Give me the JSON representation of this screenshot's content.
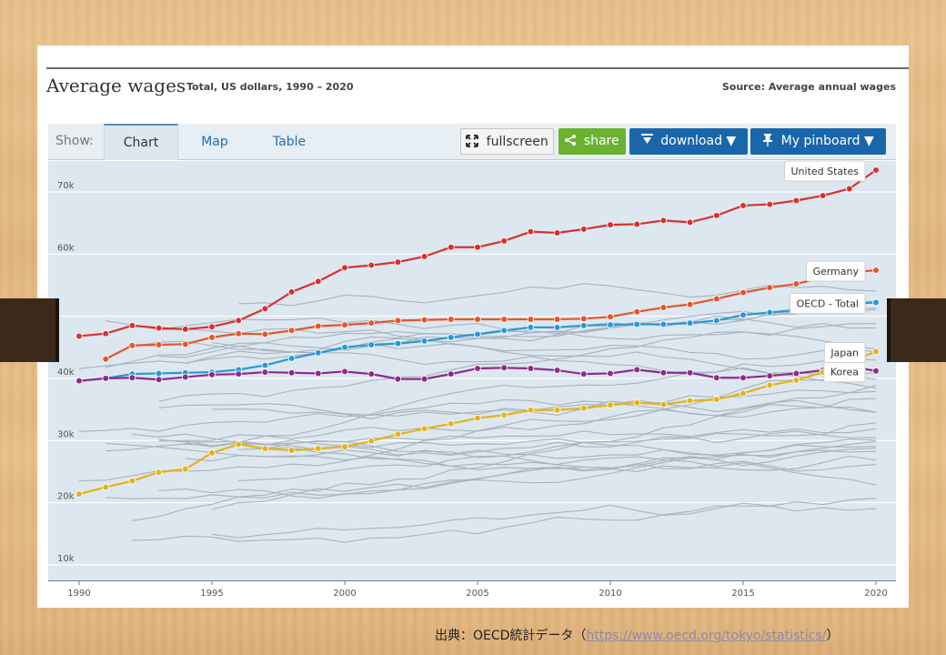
{
  "header": {
    "title": "Average wages",
    "subtitle": "Total, US dollars, 1990 – 2020",
    "source": "Source: Average annual wages"
  },
  "toolbar": {
    "show_label": "Show:",
    "tabs": [
      "Chart",
      "Map",
      "Table"
    ],
    "fullscreen_label": "fullscreen",
    "share_label": "share",
    "download_label": "download ▼",
    "pinboard_label": "My pinboard ▼"
  },
  "footer": {
    "prefix": "出典：OECD統計データ（",
    "link": "https://www.oecd.org/tokyo/statistics/",
    "suffix": "）"
  },
  "chart_data": {
    "type": "line",
    "title": "Average wages",
    "subtitle": "Total, US dollars, 1990 – 2020",
    "x": [
      1990,
      1991,
      1992,
      1993,
      1994,
      1995,
      1996,
      1997,
      1998,
      1999,
      2000,
      2001,
      2002,
      2003,
      2004,
      2005,
      2006,
      2007,
      2008,
      2009,
      2010,
      2011,
      2012,
      2013,
      2014,
      2015,
      2016,
      2017,
      2018,
      2019,
      2020
    ],
    "x_ticks": [
      1990,
      1995,
      2000,
      2005,
      2010,
      2015,
      2020
    ],
    "y_ticks": [
      10000,
      20000,
      30000,
      40000,
      60000,
      70000
    ],
    "y_tick_labels": [
      "10k",
      "20k",
      "30k",
      "40k",
      "60k",
      "70k"
    ],
    "ylim": [
      7500,
      73500
    ],
    "grid": true,
    "series": [
      {
        "name": "United States",
        "color": "#d8302f",
        "values": [
          46800,
          47200,
          48500,
          48100,
          47900,
          48300,
          49300,
          51200,
          53900,
          55600,
          57800,
          58200,
          58700,
          59600,
          61100,
          61100,
          62100,
          63600,
          63400,
          64000,
          64700,
          64800,
          65400,
          65100,
          66200,
          67800,
          68000,
          68600,
          69400,
          70500,
          73500
        ]
      },
      {
        "name": "Germany",
        "color": "#e5552a",
        "values": [
          null,
          43100,
          45300,
          45400,
          45500,
          46600,
          47200,
          47100,
          47700,
          48400,
          48600,
          48900,
          49300,
          49400,
          49500,
          49500,
          49500,
          49500,
          49500,
          49600,
          49900,
          50700,
          51400,
          51900,
          52800,
          53800,
          54600,
          55200,
          56200,
          57000,
          57400
        ]
      },
      {
        "name": "OECD - Total",
        "color": "#2b98d6",
        "values": [
          39600,
          40000,
          40700,
          40800,
          40900,
          41000,
          41400,
          42100,
          43200,
          44100,
          45000,
          45400,
          45600,
          46000,
          46600,
          47100,
          47700,
          48200,
          48200,
          48500,
          48600,
          48700,
          48700,
          48900,
          49300,
          50200,
          50600,
          51000,
          51800,
          52000,
          52200
        ]
      },
      {
        "name": "Korea",
        "color": "#8e2a8c",
        "values": [
          39600,
          40000,
          40100,
          39800,
          40200,
          40600,
          40700,
          41000,
          40900,
          40800,
          41100,
          40700,
          39900,
          39900,
          40700,
          41600,
          41700,
          41600,
          41300,
          40700,
          40800,
          41400,
          40900,
          40900,
          40100,
          40100,
          40400,
          40800,
          41300,
          41900,
          41200
        ]
      },
      {
        "name": "Japan",
        "color": "#e4b31a",
        "values": [
          21400,
          22500,
          23500,
          24900,
          25400,
          28000,
          29400,
          28700,
          28400,
          28700,
          29000,
          29900,
          31000,
          31900,
          32700,
          33600,
          34100,
          34900,
          34900,
          35200,
          35700,
          36100,
          35800,
          36400,
          36600,
          37600,
          38900,
          39700,
          41000,
          42700,
          44300
        ]
      }
    ]
  }
}
